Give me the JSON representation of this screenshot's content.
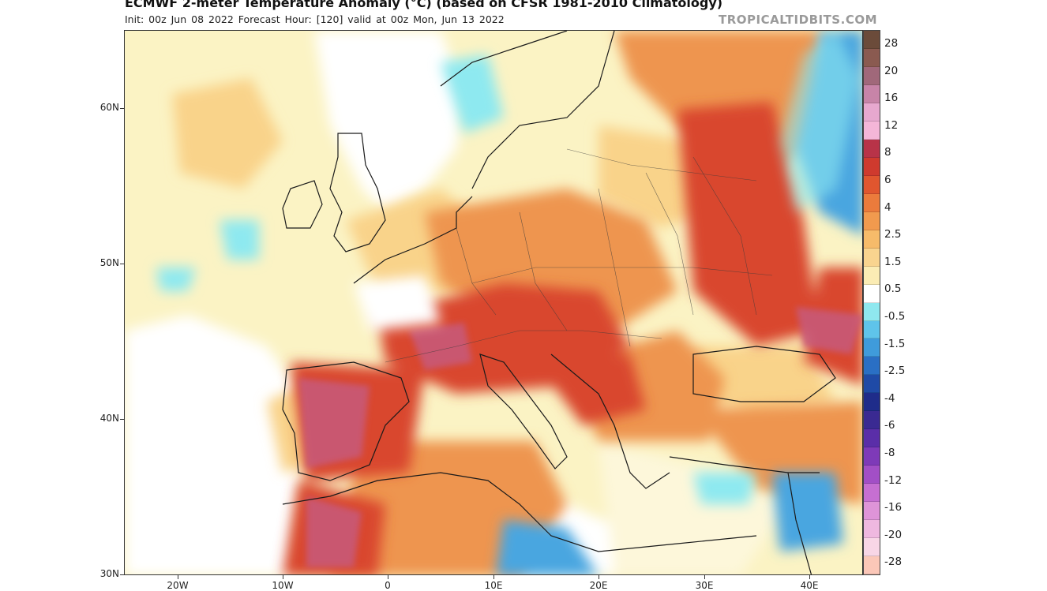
{
  "header": {
    "title": "ECMWF 2-meter Temperature Anomaly (°C) (based on CFSR 1981-2010 Climatology)",
    "subtitle": "Init: 00z Jun 08 2022   Forecast Hour: [120]   valid at 00z Mon, Jun 13 2022",
    "brand": "TROPICALTIDBITS.COM"
  },
  "map": {
    "lat_labels": [
      "60N",
      "50N",
      "40N",
      "30N"
    ],
    "lon_labels": [
      "20W",
      "10W",
      "0",
      "10E",
      "20E",
      "30E",
      "40E"
    ],
    "colors": {
      "ocean_neutral": "#fbf3c4",
      "warm_light": "#f9d38a",
      "warm_mid": "#ee9550",
      "warm_strong": "#d9472f",
      "hot": "#b5303b",
      "very_hot": "#c75a7b",
      "cool_light": "#8ee9f0",
      "cool_mid": "#4aa6e0",
      "coast": "#1a1a1a"
    }
  },
  "colorbar": {
    "labels": [
      "28",
      "20",
      "16",
      "12",
      "8",
      "6",
      "4",
      "2.5",
      "1.5",
      "0.5",
      "-0.5",
      "-1.5",
      "-2.5",
      "-4",
      "-6",
      "-8",
      "-12",
      "-16",
      "-20",
      "-28"
    ],
    "colors": [
      "#6b4b3a",
      "#8a5a50",
      "#a0687a",
      "#c784a8",
      "#e7a8cf",
      "#f4b6d8",
      "#b83348",
      "#cf3a2e",
      "#e0562f",
      "#eb7b3c",
      "#f19a4e",
      "#f6bb6a",
      "#f9d48f",
      "#fbecb4",
      "#ffffff",
      "#8fe8ef",
      "#5fc4ea",
      "#3f9bdb",
      "#2a6fc4",
      "#1f4aa6",
      "#1f2c8a",
      "#3a2a92",
      "#5a2ea8",
      "#7e3ab8",
      "#a24fc6",
      "#c66fd2",
      "#de94d8",
      "#efb8e0",
      "#f8d6e6",
      "#fbc7b8"
    ]
  }
}
